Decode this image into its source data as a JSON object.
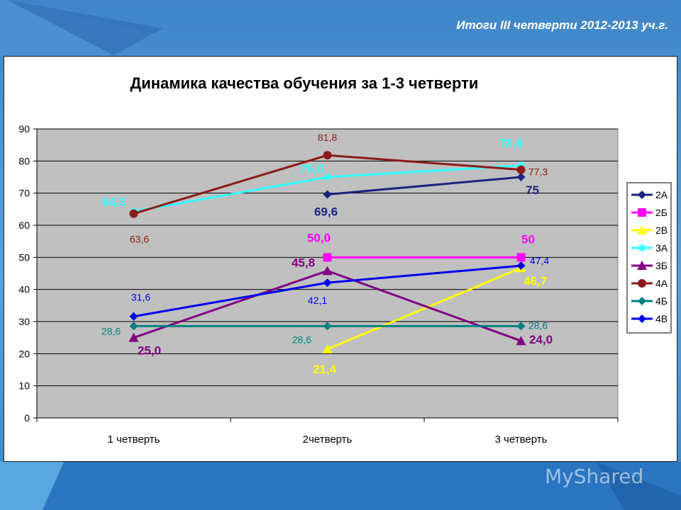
{
  "slide": {
    "header": "Итоги III четверти 2012-2013 уч.г.",
    "watermark": "MyShared"
  },
  "chart_data": {
    "type": "line",
    "title": "Динамика качества обучения за 1-3 четверти",
    "categories": [
      "1 четверть",
      "2четверть",
      "3 четверть"
    ],
    "ylim": [
      0,
      90
    ],
    "yticks": [
      0,
      10,
      20,
      30,
      40,
      50,
      60,
      70,
      80,
      90
    ],
    "grid": true,
    "legend_position": "right",
    "series": [
      {
        "name": "2А",
        "color": "#1a237e",
        "marker": "diamond",
        "values": [
          null,
          69.6,
          75
        ],
        "labels": [
          null,
          "69,6",
          "75"
        ],
        "label_color": "#1a237e",
        "label_bold": true
      },
      {
        "name": "2Б",
        "color": "#ff00ff",
        "marker": "square",
        "values": [
          null,
          50.0,
          50
        ],
        "labels": [
          null,
          "50,0",
          "50"
        ],
        "label_color": "#ff00ff",
        "label_bold": true
      },
      {
        "name": "2В",
        "color": "#ffff00",
        "marker": "triangle",
        "values": [
          null,
          21.4,
          46.7
        ],
        "labels": [
          null,
          "21,4",
          "46,7"
        ],
        "label_color": "#ffff00",
        "label_bold": true
      },
      {
        "name": "3А",
        "color": "#33ffff",
        "marker": "star",
        "values": [
          64.3,
          75.0,
          78.6
        ],
        "labels": [
          "64,3",
          "75,0",
          "78,6"
        ],
        "label_color": "#33ffff",
        "label_bold": true
      },
      {
        "name": "3Б",
        "color": "#800080",
        "marker": "triangle",
        "values": [
          25.0,
          45.8,
          24.0
        ],
        "labels": [
          "25,0",
          "45,8",
          "24,0"
        ],
        "label_color": "#800080",
        "label_bold": true
      },
      {
        "name": "4А",
        "color": "#8b1a1a",
        "marker": "circle",
        "values": [
          63.6,
          81.8,
          77.3
        ],
        "labels": [
          "63,6",
          "81,8",
          "77,3"
        ],
        "label_color": "#8b1a1a",
        "label_bold": false
      },
      {
        "name": "4Б",
        "color": "#008080",
        "marker": "diamond",
        "values": [
          28.6,
          28.6,
          28.6
        ],
        "labels": [
          "28,6",
          "28,6",
          "28,6"
        ],
        "label_color": "#008080",
        "label_bold": false
      },
      {
        "name": "4В",
        "color": "#0000ee",
        "marker": "diamond",
        "values": [
          31.6,
          42.1,
          47.4
        ],
        "labels": [
          "31,6",
          "42,1",
          "47,4"
        ],
        "label_color": "#0000ee",
        "label_bold": false
      }
    ]
  }
}
